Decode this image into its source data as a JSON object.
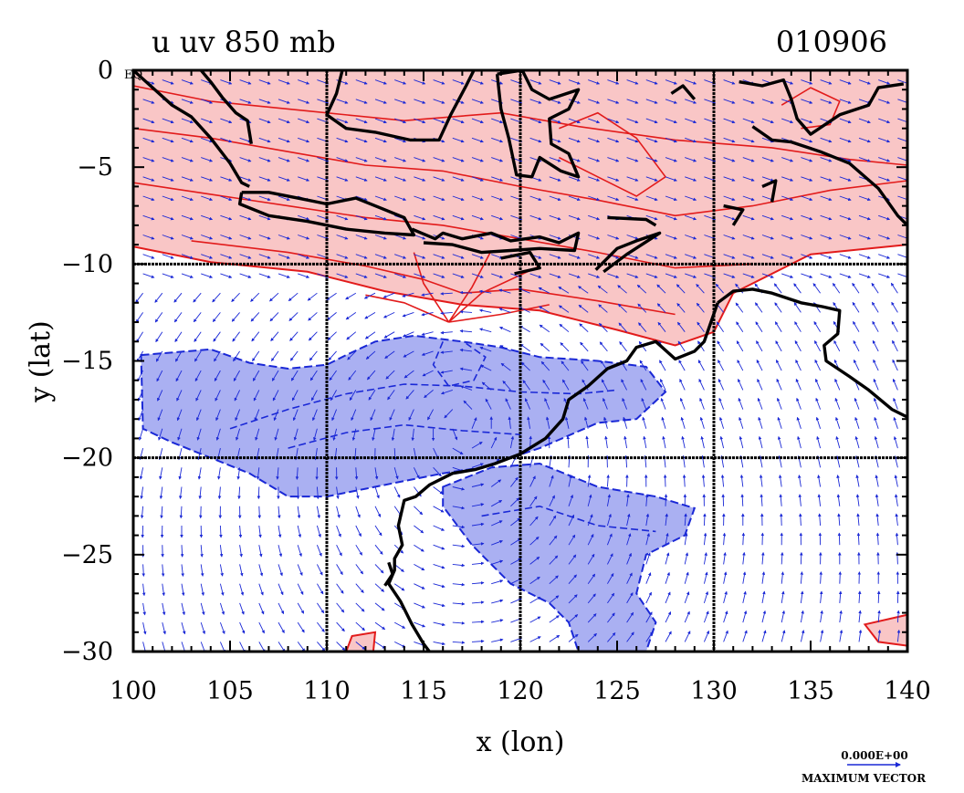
{
  "chart_data": {
    "type": "contour",
    "title": "u uv 850 mb",
    "date_label": "010906",
    "xlabel": "x (lon)",
    "ylabel": "y (lat)",
    "xlim": [
      100,
      140
    ],
    "ylim": [
      -30,
      0
    ],
    "x_ticks": [
      100,
      105,
      110,
      115,
      120,
      125,
      130,
      135,
      140
    ],
    "y_ticks": [
      0,
      -5,
      -10,
      -15,
      -20,
      -25,
      -30
    ],
    "y_tick_labels": [
      "0",
      "−5",
      "−10",
      "−15",
      "−20",
      "−25",
      "−30"
    ],
    "eq_label": "EQ",
    "grid_lines_x": [
      110,
      120,
      130
    ],
    "grid_lines_y": [
      -10,
      -20
    ],
    "vector_legend": {
      "value_label": "0.000E+00",
      "caption": "MAXIMUM VECTOR"
    },
    "colors": {
      "positive_fill": "#f9c6c6",
      "positive_contour": "#e21b1b",
      "negative_fill": "#aab0f2",
      "negative_contour": "#1a28d6",
      "vectors": "#1a28d6",
      "coastline": "#000000"
    },
    "positive_region": [
      [
        100,
        0
      ],
      [
        140,
        0
      ],
      [
        140,
        -9
      ],
      [
        135,
        -9.5
      ],
      [
        131,
        -11.5
      ],
      [
        130,
        -13.5
      ],
      [
        128,
        -14.2
      ],
      [
        125,
        -13.4
      ],
      [
        121,
        -12.4
      ],
      [
        117,
        -12.1
      ],
      [
        113,
        -11.4
      ],
      [
        109,
        -10.4
      ],
      [
        104,
        -9.9
      ],
      [
        100,
        -9.1
      ]
    ],
    "positive_islands": [
      [
        [
          137.8,
          -28.6
        ],
        [
          140,
          -28.1
        ],
        [
          140,
          -29.7
        ],
        [
          138.5,
          -29.5
        ]
      ],
      [
        [
          111.3,
          -29.2
        ],
        [
          112.5,
          -29.0
        ],
        [
          112.4,
          -30
        ],
        [
          111.0,
          -30
        ]
      ]
    ],
    "negative_regions": [
      [
        [
          100.4,
          -14.7
        ],
        [
          104,
          -14.4
        ],
        [
          106,
          -15.1
        ],
        [
          108,
          -15.4
        ],
        [
          110,
          -15.2
        ],
        [
          111,
          -14.7
        ],
        [
          112.5,
          -14.0
        ],
        [
          114.5,
          -13.7
        ],
        [
          117,
          -14.0
        ],
        [
          119,
          -14.3
        ],
        [
          121,
          -14.8
        ],
        [
          124,
          -15.0
        ],
        [
          126.5,
          -15.3
        ],
        [
          127.5,
          -16.6
        ],
        [
          126,
          -18.0
        ],
        [
          124,
          -18.2
        ],
        [
          121,
          -19.5
        ],
        [
          118,
          -20.5
        ],
        [
          116,
          -20.8
        ],
        [
          114,
          -21.2
        ],
        [
          112,
          -21.6
        ],
        [
          110,
          -22.0
        ],
        [
          108,
          -22.0
        ],
        [
          106,
          -20.8
        ],
        [
          104,
          -20.0
        ],
        [
          102,
          -19.2
        ],
        [
          100.5,
          -18.5
        ]
      ],
      [
        [
          116,
          -21.5
        ],
        [
          118.5,
          -20.5
        ],
        [
          121,
          -20.3
        ],
        [
          124,
          -21.5
        ],
        [
          127,
          -22.0
        ],
        [
          129,
          -22.6
        ],
        [
          128.5,
          -24.0
        ],
        [
          126.5,
          -25.0
        ],
        [
          126,
          -27.0
        ],
        [
          127,
          -28.5
        ],
        [
          126.5,
          -30
        ],
        [
          123,
          -30
        ],
        [
          122.5,
          -28.5
        ],
        [
          121.5,
          -27.5
        ],
        [
          119.5,
          -26.5
        ],
        [
          117.5,
          -24.5
        ],
        [
          116,
          -22.5
        ]
      ]
    ],
    "positive_contours": [
      [
        [
          100,
          -0.8
        ],
        [
          104,
          -1.6
        ],
        [
          109,
          -2.1
        ],
        [
          114,
          -2.6
        ],
        [
          119,
          -2.2
        ],
        [
          123,
          -2.9
        ],
        [
          128,
          -3.6
        ],
        [
          133,
          -4.0
        ],
        [
          137,
          -4.6
        ],
        [
          140,
          -4.9
        ]
      ],
      [
        [
          100,
          -3.0
        ],
        [
          104,
          -3.5
        ],
        [
          108,
          -4.2
        ],
        [
          112,
          -4.9
        ],
        [
          116,
          -5.2
        ],
        [
          120,
          -6.0
        ],
        [
          124,
          -6.7
        ],
        [
          128,
          -7.5
        ],
        [
          132,
          -7.0
        ],
        [
          136,
          -6.2
        ],
        [
          140,
          -5.7
        ]
      ],
      [
        [
          100,
          -5.8
        ],
        [
          104,
          -6.4
        ],
        [
          108,
          -7.0
        ],
        [
          112,
          -7.6
        ],
        [
          116,
          -8.0
        ],
        [
          120,
          -8.7
        ],
        [
          124,
          -9.4
        ],
        [
          128,
          -10.2
        ],
        [
          132,
          -10.0
        ]
      ],
      [
        [
          103,
          -8.8
        ],
        [
          108,
          -9.4
        ],
        [
          112,
          -10.1
        ],
        [
          115,
          -10.8
        ],
        [
          117,
          -11.5
        ],
        [
          120,
          -11.3
        ],
        [
          124,
          -11.9
        ],
        [
          128,
          -12.6
        ]
      ],
      [
        [
          116.3,
          -13.0
        ],
        [
          114,
          -12.0
        ],
        [
          112,
          -11.6
        ]
      ],
      [
        [
          116.3,
          -13.0
        ],
        [
          115,
          -11.0
        ],
        [
          114.5,
          -9.4
        ]
      ],
      [
        [
          116.3,
          -13.0
        ],
        [
          117.5,
          -11.2
        ],
        [
          118.5,
          -9.3
        ]
      ],
      [
        [
          116.3,
          -13.0
        ],
        [
          119,
          -12.6
        ],
        [
          121.5,
          -12.1
        ]
      ],
      [
        [
          116.3,
          -13.0
        ],
        [
          118,
          -11.5
        ],
        [
          121,
          -10.1
        ]
      ],
      [
        [
          122,
          -3.0
        ],
        [
          124,
          -2.2
        ],
        [
          126,
          -3.5
        ],
        [
          127.5,
          -5.5
        ],
        [
          126,
          -6.5
        ],
        [
          124,
          -5.5
        ],
        [
          122,
          -4.5
        ]
      ],
      [
        [
          133.5,
          -1.8
        ],
        [
          135,
          -0.9
        ],
        [
          136.5,
          -1.6
        ],
        [
          136,
          -2.8
        ],
        [
          134.5,
          -3.0
        ]
      ]
    ],
    "negative_contours": [
      [
        [
          105,
          -18.5
        ],
        [
          108,
          -17.5
        ],
        [
          111,
          -16.7
        ],
        [
          114,
          -16.2
        ],
        [
          117,
          -16.3
        ],
        [
          120,
          -16.6
        ],
        [
          123,
          -16.7
        ],
        [
          125,
          -16.5
        ]
      ],
      [
        [
          108,
          -19.5
        ],
        [
          111,
          -18.7
        ],
        [
          114,
          -18.3
        ],
        [
          117,
          -18.6
        ],
        [
          120,
          -18.8
        ]
      ],
      [
        [
          116,
          -14.0
        ],
        [
          115.5,
          -15.2
        ],
        [
          116.3,
          -16.3
        ],
        [
          117.6,
          -16.0
        ],
        [
          118.2,
          -14.8
        ],
        [
          117.2,
          -14.1
        ]
      ],
      [
        [
          118,
          -23.0
        ],
        [
          121,
          -22.5
        ],
        [
          124,
          -23.5
        ],
        [
          127,
          -23.8
        ]
      ]
    ],
    "coastlines": [
      [
        [
          100,
          0
        ],
        [
          101,
          -0.9
        ],
        [
          102,
          -1.8
        ],
        [
          103,
          -2.4
        ],
        [
          104,
          -3.5
        ],
        [
          105,
          -4.8
        ],
        [
          105.6,
          -5.8
        ],
        [
          106,
          -6.0
        ]
      ],
      [
        [
          103.5,
          0
        ],
        [
          104,
          -0.6
        ],
        [
          104.6,
          -1.4
        ],
        [
          105.3,
          -2.2
        ],
        [
          105.9,
          -2.6
        ],
        [
          106.1,
          -3.8
        ]
      ],
      [
        [
          105.6,
          -6.3
        ],
        [
          107,
          -6.3
        ],
        [
          108.5,
          -6.6
        ],
        [
          110,
          -6.9
        ],
        [
          111.5,
          -6.6
        ],
        [
          112.5,
          -7.0
        ],
        [
          114,
          -7.6
        ],
        [
          114.5,
          -8.5
        ],
        [
          113,
          -8.4
        ],
        [
          111,
          -8.2
        ],
        [
          109,
          -7.8
        ],
        [
          107,
          -7.5
        ],
        [
          105.5,
          -6.9
        ],
        [
          105.6,
          -6.3
        ]
      ],
      [
        [
          110.8,
          0
        ],
        [
          110.5,
          -1.2
        ],
        [
          110.0,
          -2.3
        ],
        [
          111.0,
          -3.0
        ],
        [
          112.5,
          -3.2
        ],
        [
          114.3,
          -3.6
        ],
        [
          115.8,
          -3.6
        ],
        [
          116.4,
          -2.3
        ],
        [
          117.2,
          -0.8
        ],
        [
          117.6,
          0
        ]
      ],
      [
        [
          118.8,
          -0.2
        ],
        [
          120.1,
          0
        ],
        [
          120.6,
          -1.0
        ],
        [
          121.5,
          -1.5
        ],
        [
          123.0,
          -1.0
        ],
        [
          122.5,
          -2.0
        ],
        [
          121.5,
          -2.5
        ],
        [
          121.6,
          -3.8
        ],
        [
          122.5,
          -4.3
        ],
        [
          123.0,
          -5.5
        ],
        [
          122.1,
          -5.2
        ],
        [
          121.0,
          -4.5
        ],
        [
          120.6,
          -5.5
        ],
        [
          119.8,
          -5.4
        ],
        [
          119.4,
          -3.5
        ],
        [
          119.0,
          -2.0
        ],
        [
          118.8,
          -0.2
        ]
      ],
      [
        [
          114.4,
          -8.2
        ],
        [
          115.6,
          -8.7
        ],
        [
          116.0,
          -8.4
        ],
        [
          117.0,
          -8.7
        ],
        [
          118.5,
          -8.4
        ],
        [
          119.5,
          -8.8
        ],
        [
          121.0,
          -8.6
        ],
        [
          122.0,
          -8.9
        ],
        [
          123.0,
          -8.4
        ],
        [
          122.8,
          -9.3
        ],
        [
          121.0,
          -9.2
        ],
        [
          119.5,
          -9.3
        ],
        [
          118.0,
          -9.4
        ],
        [
          116.5,
          -9.0
        ],
        [
          115.0,
          -8.9
        ]
      ],
      [
        [
          119.0,
          -9.7
        ],
        [
          120.5,
          -9.4
        ],
        [
          121.0,
          -10.2
        ],
        [
          119.7,
          -10.5
        ]
      ],
      [
        [
          123.9,
          -10.3
        ],
        [
          125.0,
          -9.2
        ],
        [
          126.0,
          -8.8
        ],
        [
          127.2,
          -8.4
        ],
        [
          125.5,
          -9.5
        ],
        [
          124.3,
          -10.4
        ]
      ],
      [
        [
          124.5,
          -7.6
        ],
        [
          126.5,
          -7.7
        ],
        [
          127.0,
          -8.0
        ]
      ],
      [
        [
          127.8,
          -1.2
        ],
        [
          128.4,
          -0.8
        ],
        [
          129,
          -1.5
        ]
      ],
      [
        [
          131.3,
          -0.6
        ],
        [
          132.5,
          -0.8
        ],
        [
          133.6,
          -0.5
        ],
        [
          134.0,
          -1.5
        ],
        [
          134.3,
          -2.5
        ],
        [
          135.0,
          -3.3
        ],
        [
          136.5,
          -2.3
        ],
        [
          138.0,
          -1.8
        ],
        [
          138.5,
          -0.9
        ],
        [
          139.8,
          -0.7
        ]
      ],
      [
        [
          132.0,
          -2.9
        ],
        [
          133.0,
          -3.6
        ],
        [
          134.0,
          -3.7
        ],
        [
          135.5,
          -4.2
        ],
        [
          137.0,
          -4.8
        ],
        [
          138.5,
          -6.1
        ],
        [
          139.5,
          -7.5
        ],
        [
          140,
          -8.0
        ]
      ],
      [
        [
          130.5,
          -7.0
        ],
        [
          131.5,
          -7.2
        ],
        [
          131.0,
          -8.0
        ]
      ],
      [
        [
          132.5,
          -6.0
        ],
        [
          133.2,
          -5.7
        ],
        [
          133.0,
          -6.8
        ]
      ],
      [
        [
          130.2,
          -12.0
        ],
        [
          131.0,
          -11.4
        ],
        [
          132.0,
          -11.3
        ],
        [
          133.0,
          -11.5
        ],
        [
          134.5,
          -12.0
        ],
        [
          135.6,
          -12.2
        ],
        [
          136.5,
          -12.4
        ],
        [
          136.4,
          -13.6
        ],
        [
          135.7,
          -14.2
        ],
        [
          135.8,
          -15.0
        ],
        [
          137.0,
          -15.8
        ],
        [
          138.0,
          -16.5
        ],
        [
          139.2,
          -17.5
        ],
        [
          140,
          -17.9
        ]
      ],
      [
        [
          130.2,
          -12.0
        ],
        [
          129.5,
          -14.0
        ],
        [
          129.0,
          -14.5
        ],
        [
          128.0,
          -14.9
        ],
        [
          127.0,
          -14.0
        ],
        [
          126.0,
          -14.3
        ],
        [
          125.5,
          -15.0
        ],
        [
          124.5,
          -15.4
        ],
        [
          123.5,
          -16.3
        ],
        [
          122.5,
          -17.0
        ],
        [
          122.2,
          -18.0
        ],
        [
          121.3,
          -19.0
        ],
        [
          120.0,
          -19.8
        ],
        [
          118.7,
          -20.3
        ],
        [
          117.7,
          -20.6
        ],
        [
          116.5,
          -20.8
        ],
        [
          115.3,
          -21.4
        ],
        [
          114.6,
          -22.0
        ],
        [
          114.0,
          -22.2
        ],
        [
          113.7,
          -23.5
        ],
        [
          113.9,
          -24.5
        ],
        [
          113.5,
          -25.2
        ],
        [
          113.5,
          -25.8
        ],
        [
          113.2,
          -26.5
        ],
        [
          113.8,
          -27.4
        ],
        [
          114.4,
          -28.6
        ],
        [
          115.0,
          -29.6
        ],
        [
          115.3,
          -30
        ]
      ],
      [
        [
          113.0,
          -26.6
        ],
        [
          113.4,
          -26.0
        ],
        [
          113.2,
          -25.4
        ]
      ]
    ],
    "grid_spacing_deg": 1,
    "vectors_note": "wind vector field drawn as small arrows"
  }
}
